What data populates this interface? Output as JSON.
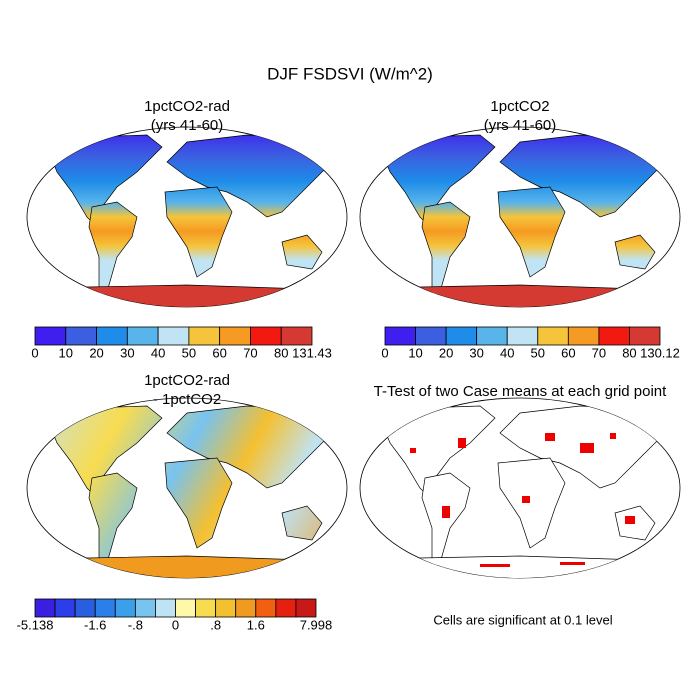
{
  "title": "DJF FSDSVI (W/m^2)",
  "panels": [
    {
      "title": [
        "1pctCO2-rad",
        "(yrs 41-60)"
      ],
      "colorbar": {
        "colors": [
          "#3e1ff0",
          "#3c5ee0",
          "#1e8ce8",
          "#58b4ea",
          "#c0e4f4",
          "#f5c43a",
          "#f59a22",
          "#f21a10",
          "#d43a32"
        ],
        "labels": [
          "0",
          "10",
          "20",
          "30",
          "40",
          "50",
          "60",
          "70",
          "80",
          "131.43"
        ]
      }
    },
    {
      "title": [
        "1pctCO2",
        "(yrs 41-60)"
      ],
      "colorbar": {
        "colors": [
          "#3e1ff0",
          "#3c5ee0",
          "#1e8ce8",
          "#58b4ea",
          "#c0e4f4",
          "#f5c43a",
          "#f59a22",
          "#f21a10",
          "#d43a32"
        ],
        "labels": [
          "0",
          "10",
          "20",
          "30",
          "40",
          "50",
          "60",
          "70",
          "80",
          "130.12"
        ]
      }
    },
    {
      "title": [
        "1pctCO2-rad",
        "- 1pctCO2"
      ],
      "colorbar": {
        "colors": [
          "#3a1fe0",
          "#2d3de8",
          "#2a5ee0",
          "#2a80e8",
          "#3aa0ea",
          "#78c3ef",
          "#bfe3f5",
          "#fff8a8",
          "#f8dc50",
          "#f5c030",
          "#f09a20",
          "#f06010",
          "#e42010",
          "#c81818"
        ],
        "labels": [
          "-5.138",
          null,
          null,
          "-1.6",
          null,
          "-.8",
          null,
          "0",
          null,
          ".8",
          null,
          "1.6",
          null,
          null,
          "7.998"
        ]
      }
    },
    {
      "title": [
        "T-Test of two Case means at each grid point"
      ],
      "note": "Cells are significant at 0.1 level"
    }
  ]
}
